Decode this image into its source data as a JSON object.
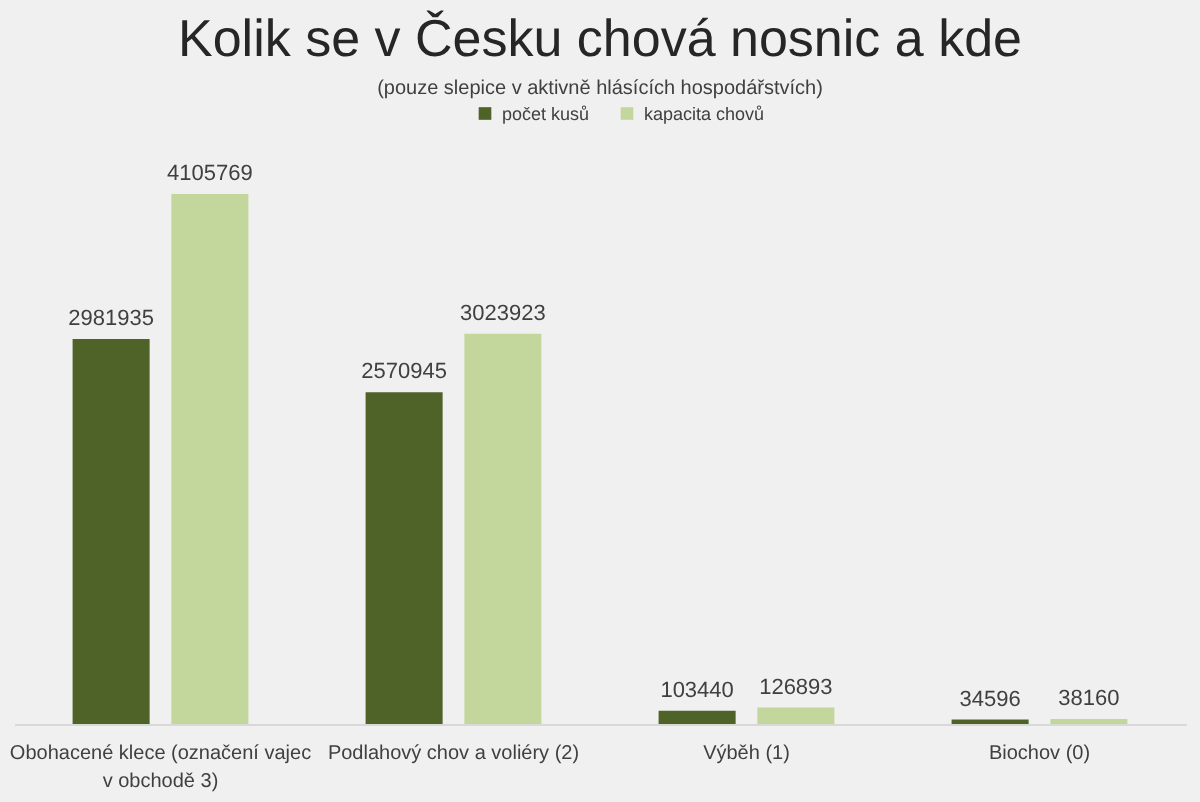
{
  "chart_data": {
    "type": "bar",
    "title": "Kolik se v Česku chová nosnic a kde",
    "subtitle": "(pouze slepice v aktivně hlásících hospodářstvích)",
    "categories": [
      "Obohacené klece (označení vajec v obchodě 3)",
      "Podlahový chov a voliéry (2)",
      "Výběh (1)",
      "Biochov (0)"
    ],
    "series": [
      {
        "name": "počet kusů",
        "color": "#4f6228",
        "values": [
          2981935,
          2570945,
          103440,
          34596
        ]
      },
      {
        "name": "kapacita chovů",
        "color": "#c3d69b",
        "values": [
          4105769,
          3023923,
          126893,
          38160
        ]
      }
    ],
    "data_labels": true,
    "legend": "top"
  }
}
